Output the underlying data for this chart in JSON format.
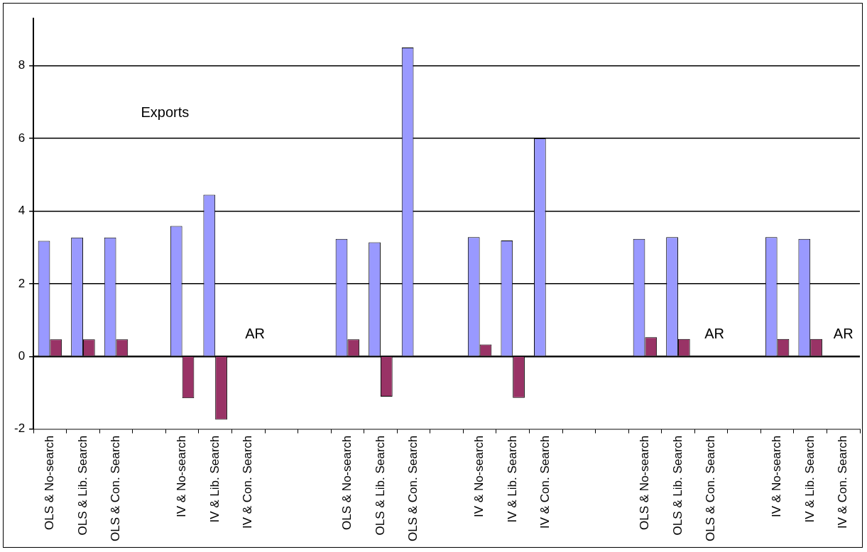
{
  "chart_data": {
    "type": "bar",
    "categories": [
      "OLS & No-search",
      "OLS & Lib. Search",
      "OLS & Con. Search",
      null,
      "IV & No-search",
      "IV & Lib. Search",
      "IV & Con. Search",
      null,
      null,
      "OLS & No-search",
      "OLS & Lib. Search",
      "OLS & Con. Search",
      null,
      "IV & No-search",
      "IV & Lib. Search",
      "IV & Con. Search",
      null,
      null,
      "OLS & No-search",
      "OLS & Lib. Search",
      "OLS & Con. Search",
      null,
      "IV & No-search",
      "IV & Lib. Search",
      "IV & Con. Search"
    ],
    "series": [
      {
        "color": "#9999ff",
        "values": [
          3.18,
          3.27,
          3.27,
          null,
          3.59,
          4.45,
          null,
          null,
          null,
          3.23,
          3.14,
          8.5,
          null,
          3.28,
          3.19,
          6.0,
          null,
          null,
          3.23,
          3.28,
          null,
          null,
          3.28,
          3.23,
          null
        ]
      },
      {
        "color": "#993366",
        "values": [
          0.47,
          0.47,
          0.47,
          null,
          -1.15,
          -1.74,
          null,
          null,
          null,
          0.47,
          -1.11,
          null,
          null,
          0.33,
          -1.14,
          null,
          null,
          null,
          0.53,
          0.48,
          null,
          null,
          0.48,
          0.48,
          null
        ]
      }
    ],
    "ylim": [
      -2,
      9.3
    ],
    "yticks": [
      -2,
      0,
      2,
      4,
      6,
      8
    ],
    "grid": "y",
    "legend": false,
    "annotations": [
      "Exports",
      "AR",
      "AR",
      "AR"
    ]
  }
}
